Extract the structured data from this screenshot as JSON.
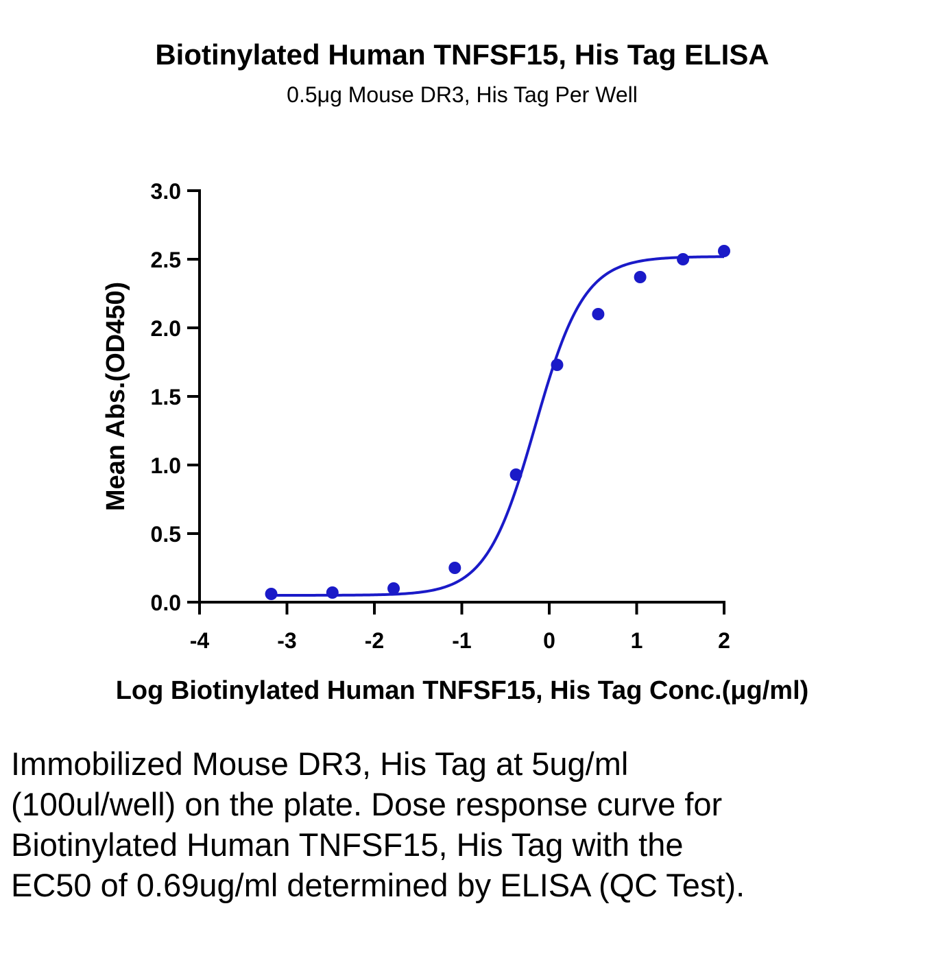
{
  "chart_data": {
    "type": "line",
    "title": "Biotinylated Human TNFSF15, His Tag ELISA",
    "subtitle": "0.5μg Mouse DR3, His Tag Per Well",
    "xlabel": "Log Biotinylated Human TNFSF15, His Tag Conc.(μg/ml)",
    "ylabel": "Mean Abs.(OD450)",
    "xlim": [
      -4,
      2
    ],
    "ylim": [
      0,
      3.0
    ],
    "xticks": [
      "-4",
      "-3",
      "-2",
      "-1",
      "0",
      "1",
      "2"
    ],
    "yticks": [
      "0.0",
      "0.5",
      "1.0",
      "1.5",
      "2.0",
      "2.5",
      "3.0"
    ],
    "grid": false,
    "color": "#1a1ac8",
    "series": [
      {
        "type": "scatter",
        "x": [
          -3.18,
          -2.48,
          -1.78,
          -1.08,
          -0.38,
          0.09,
          0.56,
          1.04,
          1.53,
          2.0
        ],
        "y": [
          0.06,
          0.07,
          0.1,
          0.25,
          0.93,
          1.73,
          2.1,
          2.37,
          2.5,
          2.56
        ]
      },
      {
        "type": "fit-curve",
        "model": "4PL",
        "bottom": 0.05,
        "top": 2.52,
        "log_ec50": -0.16,
        "hill": 1.55
      }
    ]
  },
  "caption": "Immobilized Mouse DR3, His Tag at 5ug/ml (100ul/well) on the plate. Dose response curve for Biotinylated Human TNFSF15, His Tag with the EC50 of 0.69ug/ml determined by ELISA (QC Test)."
}
